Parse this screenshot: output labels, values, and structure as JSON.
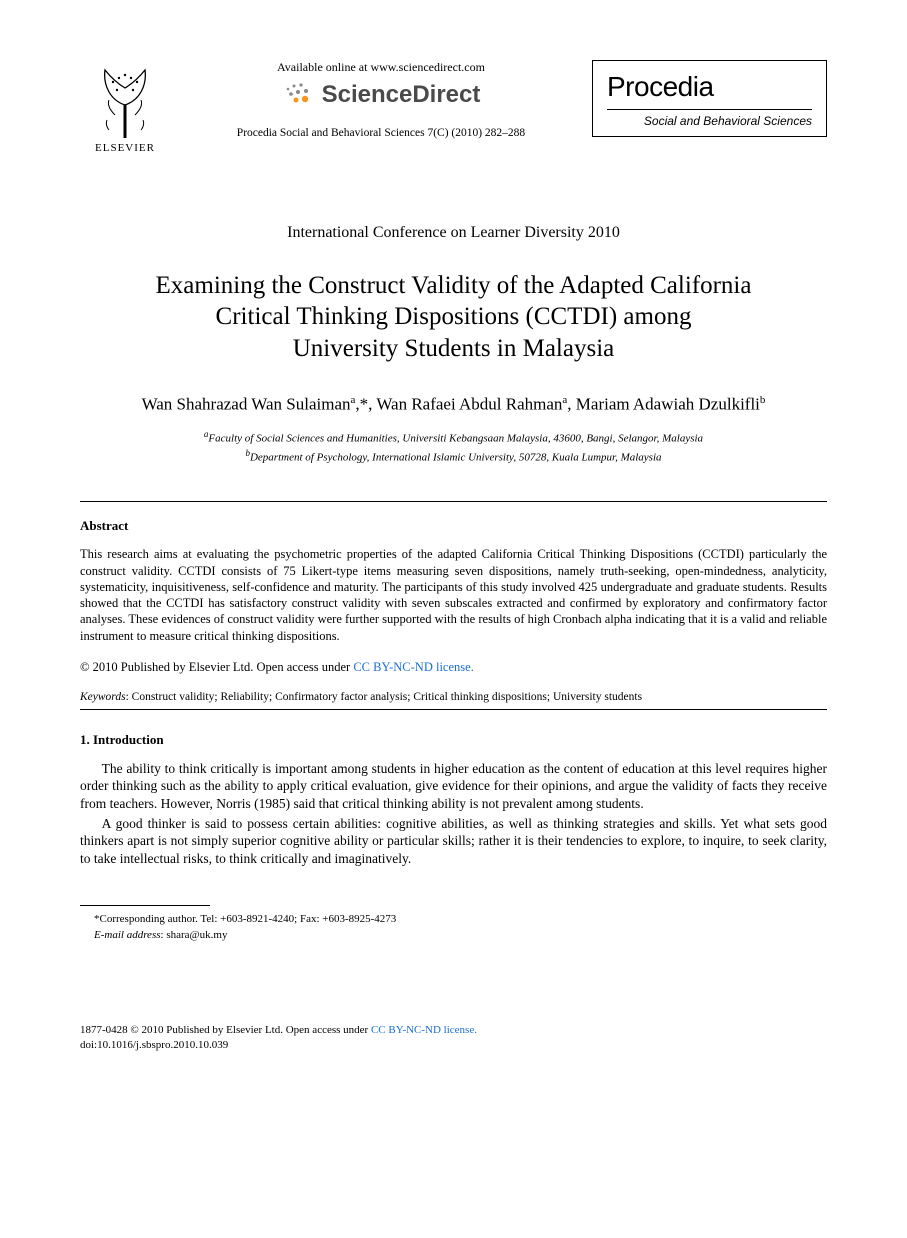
{
  "header": {
    "elsevier_label": "ELSEVIER",
    "available_text": "Available online at www.sciencedirect.com",
    "sciencedirect_text": "ScienceDirect",
    "citation": "Procedia Social and Behavioral Sciences 7(C) (2010) 282–288",
    "procedia_title": "Procedia",
    "procedia_subtitle": "Social and Behavioral Sciences"
  },
  "conference": "International Conference on Learner Diversity 2010",
  "title_lines": [
    "Examining the Construct Validity of the Adapted California",
    "Critical Thinking Dispositions (CCTDI) among",
    "University Students in Malaysia"
  ],
  "authors_html": "Wan Shahrazad Wan Sulaiman<sup>a</sup>,*, Wan Rafaei Abdul Rahman<sup>a</sup>, Mariam Adawiah Dzulkifli<sup>b</sup>",
  "affiliations": [
    {
      "sup": "a",
      "text": "Faculty of Social Sciences and Humanities, Universiti Kebangsaan Malaysia, 43600, Bangi, Selangor, Malaysia"
    },
    {
      "sup": "b",
      "text": "Department of Psychology, International Islamic University, 50728, Kuala Lumpur, Malaysia"
    }
  ],
  "abstract_head": "Abstract",
  "abstract_body": "This research aims at evaluating the psychometric properties of the adapted California Critical Thinking Dispositions (CCTDI) particularly the construct validity. CCTDI consists of 75 Likert-type items measuring seven dispositions, namely truth-seeking, open-mindedness, analyticity, systematicity, inquisitiveness, self-confidence and maturity. The participants of this study involved 425 undergraduate and graduate students. Results showed that the CCTDI has satisfactory construct validity with seven subscales extracted and confirmed by exploratory and confirmatory factor analyses. These evidences of construct validity were further supported with the results of high Cronbach alpha indicating that it is a valid and reliable instrument to measure critical thinking dispositions.",
  "copyright_prefix": "© 2010 Published by Elsevier Ltd.",
  "open_access_text": "Open access under ",
  "license_text": "CC BY-NC-ND license.",
  "keywords_label": "Keywords",
  "keywords_value": ": Construct validity; Reliability; Confirmatory factor analysis; Critical thinking dispositions; University students",
  "intro_head": "1. Introduction",
  "intro_paras": [
    "The ability to think critically is important among students in higher education as the content of education at this level requires higher order thinking such as the ability to apply critical evaluation, give evidence for their opinions, and argue the validity of facts they receive from teachers. However, Norris (1985) said that critical thinking ability is not prevalent among students.",
    "A good thinker is said to possess certain abilities: cognitive abilities, as well as thinking strategies and skills. Yet what sets good thinkers apart is not simply superior cognitive ability or particular skills; rather it is their tendencies to explore, to inquire, to seek clarity, to take intellectual risks, to think critically and imaginatively."
  ],
  "footnote": {
    "corresponding": "*Corresponding author. Tel: +603-8921-4240; Fax: +603-8925-4273",
    "email_label": "E-mail address",
    "email_value": ": shara@uk.my"
  },
  "bottom": {
    "issn_line": "1877-0428 © 2010 Published by Elsevier Ltd.",
    "doi": "doi:10.1016/j.sbspro.2010.10.039"
  },
  "colors": {
    "link": "#1a6fd4",
    "sd_orange": "#f7941e",
    "sd_gray": "#888888"
  }
}
